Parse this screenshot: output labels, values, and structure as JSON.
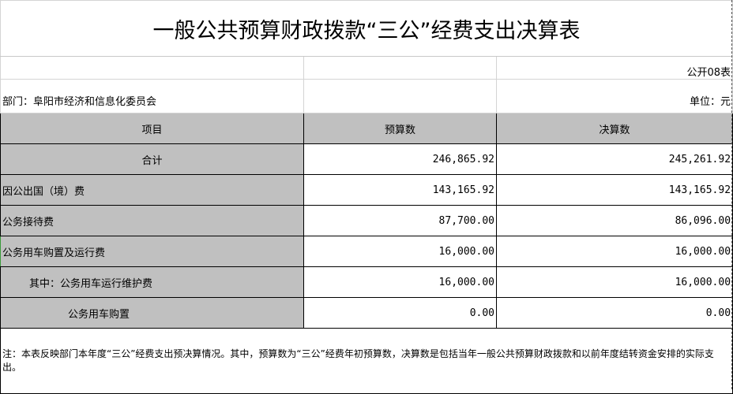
{
  "title": "一般公共预算财政拨款“三公”经费支出决算表",
  "table_code": "公开08表",
  "department": "部门：阜阳市经济和信息化委员会",
  "unit": "单位：元",
  "headers": [
    "项目",
    "预算数",
    "决算数"
  ],
  "rows": [
    {
      "label": "合计",
      "budget": "246,865.92",
      "final": "245,261.92"
    },
    {
      "label": "因公出国（境）费",
      "budget": "143,165.92",
      "final": "143,165.92"
    },
    {
      "label": "公务接待费",
      "budget": "87,700.00",
      "final": "86,096.00"
    },
    {
      "label": "公务用车购置及运行费",
      "budget": "16,000.00",
      "final": "16,000.00"
    },
    {
      "label": "其中：公务用车运行维护费",
      "budget": "16,000.00",
      "final": "16,000.00"
    },
    {
      "label": "公务用车购置",
      "budget": "0.00",
      "final": "0.00"
    }
  ],
  "note": "注：本表反映部门本年度“三公”经费支出预决算情况。其中，预算数为“三公”经费年初预算数，决算数是包括当年一般公共预算财政拨款和以前年度结转资金安排的实际支出。",
  "colors": {
    "header_bg": "#c0c0c0",
    "grid": "#d4d4d4",
    "border": "#000000"
  }
}
